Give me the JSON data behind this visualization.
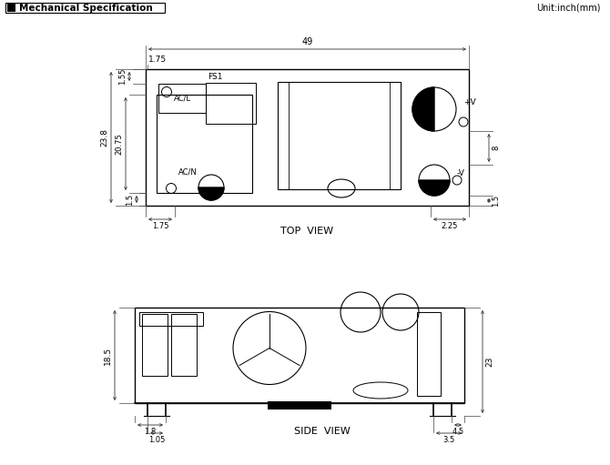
{
  "title": "Mechanical Specification",
  "unit_label": "Unit:inch(mm)",
  "top_view_label": "TOP  VIEW",
  "side_view_label": "SIDE  VIEW",
  "bg_color": "#ffffff",
  "line_color": "#000000",
  "dim_color": "#444444",
  "top_view": {
    "dim_49": "49",
    "dim_155": "1.55",
    "dim_175_top": "1.75",
    "dim_238": "23.8",
    "dim_2075": "20.75",
    "dim_15_bot": "1.5",
    "dim_175_bot": "1.75",
    "dim_225": "2.25",
    "dim_8": "8",
    "dim_15_right": "1.5",
    "label_acl": "AC/L",
    "label_fs1": "FS1",
    "label_acn": "AC/N",
    "label_pv": "+V",
    "label_nv": "-V"
  },
  "side_view": {
    "dim_185": "18.5",
    "dim_23": "23",
    "dim_18": "1.8",
    "dim_105": "1.05",
    "dim_45": "4.5",
    "dim_35": "3.5"
  }
}
